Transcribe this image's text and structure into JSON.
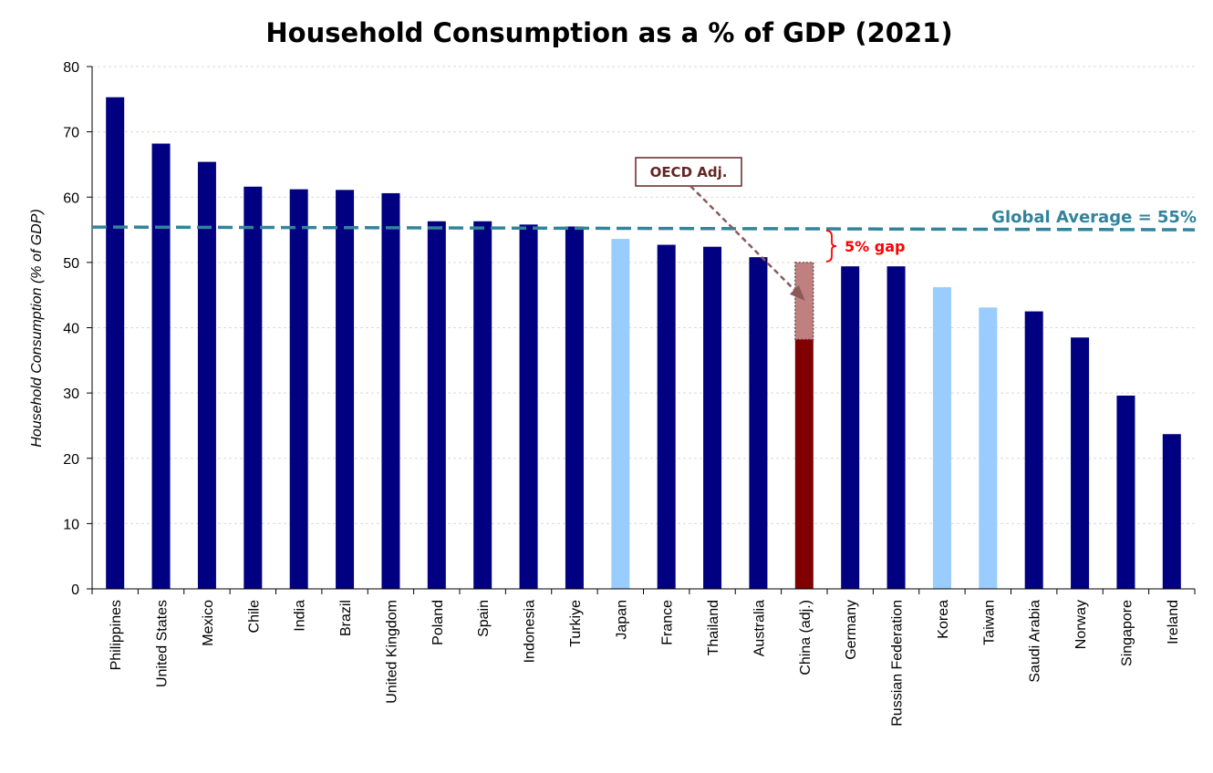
{
  "chart_data": {
    "type": "bar",
    "title": "Household Consumption as a % of GDP (2021)",
    "ylabel": "Household Consumption (% of GDP)",
    "xlabel": "",
    "ylim": [
      0,
      80
    ],
    "yticks": [
      0,
      10,
      20,
      30,
      40,
      50,
      60,
      70,
      80
    ],
    "grid": true,
    "categories": [
      "Philippines",
      "United States",
      "Mexico",
      "Chile",
      "India",
      "Brazil",
      "United Kingdom",
      "Poland",
      "Spain",
      "Indonesia",
      "Turkiye",
      "Japan",
      "France",
      "Thailand",
      "Australia",
      "China (adj.)",
      "Germany",
      "Russian Federation",
      "Korea",
      "Taiwan",
      "Saudi Arabia",
      "Norway",
      "Singapore",
      "Ireland"
    ],
    "values": [
      75.3,
      68.2,
      65.4,
      61.6,
      61.2,
      61.1,
      60.6,
      56.3,
      56.3,
      55.8,
      55.5,
      53.6,
      52.7,
      52.4,
      50.8,
      38.2,
      49.4,
      49.4,
      46.2,
      43.1,
      42.5,
      38.5,
      29.6,
      23.7
    ],
    "bar_colors": [
      "#000080",
      "#000080",
      "#000080",
      "#000080",
      "#000080",
      "#000080",
      "#000080",
      "#000080",
      "#000080",
      "#000080",
      "#000080",
      "#99CCFF",
      "#000080",
      "#000080",
      "#000080",
      "#800000",
      "#000080",
      "#000080",
      "#99CCFF",
      "#99CCFF",
      "#000080",
      "#000080",
      "#000080",
      "#000080"
    ],
    "oecd_adjustment": {
      "category": "China (adj.)",
      "base": 38.2,
      "adjusted": 50.0,
      "color": "#C08080",
      "label": "OECD Adj."
    },
    "reference_line": {
      "value": 55,
      "label": "Global Average = 55%",
      "color": "#31849B"
    },
    "gap_annotation": {
      "label": "5% gap",
      "from": 50,
      "to": 55,
      "color": "#FF0000"
    }
  }
}
